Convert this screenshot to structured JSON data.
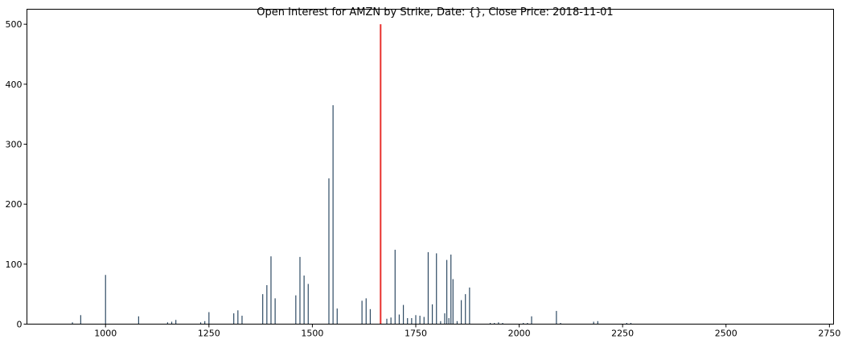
{
  "chart_data": {
    "type": "bar",
    "title": "Open Interest for AMZN by Strike, Date: {}, Close Price: 2018-11-01",
    "xlabel": "",
    "ylabel": "",
    "xlim": [
      810,
      2760
    ],
    "ylim": [
      0,
      525
    ],
    "x_ticks": [
      1000,
      1250,
      1500,
      1750,
      2000,
      2250,
      2500,
      2750
    ],
    "y_ticks": [
      0,
      100,
      200,
      300,
      400,
      500
    ],
    "grid": false,
    "legend": "none",
    "bar_color": "#2f4b64",
    "marker": {
      "x": 1665,
      "value": 500,
      "color": "#e8302e"
    },
    "series": [
      {
        "x": [
          920,
          940,
          1000,
          1080,
          1150,
          1160,
          1170,
          1230,
          1240,
          1250,
          1310,
          1320,
          1330,
          1380,
          1390,
          1400,
          1410,
          1460,
          1470,
          1480,
          1490,
          1540,
          1550,
          1560,
          1620,
          1630,
          1640,
          1680,
          1690,
          1700,
          1710,
          1720,
          1730,
          1740,
          1750,
          1760,
          1770,
          1780,
          1790,
          1800,
          1810,
          1820,
          1825,
          1830,
          1835,
          1840,
          1850,
          1860,
          1870,
          1880,
          1930,
          1940,
          1950,
          1960,
          2010,
          2020,
          2030,
          2090,
          2100,
          2180,
          2190,
          2260,
          2270
        ],
        "values": [
          3,
          15,
          82,
          13,
          3,
          4,
          7,
          3,
          5,
          20,
          18,
          23,
          14,
          50,
          65,
          113,
          43,
          48,
          112,
          81,
          67,
          243,
          365,
          26,
          39,
          43,
          25,
          9,
          11,
          124,
          16,
          32,
          10,
          10,
          15,
          14,
          12,
          120,
          33,
          118,
          5,
          18,
          107,
          10,
          116,
          75,
          5,
          40,
          50,
          61,
          2,
          2,
          3,
          2,
          2,
          2,
          13,
          22,
          2,
          4,
          5,
          2,
          2
        ]
      }
    ]
  }
}
